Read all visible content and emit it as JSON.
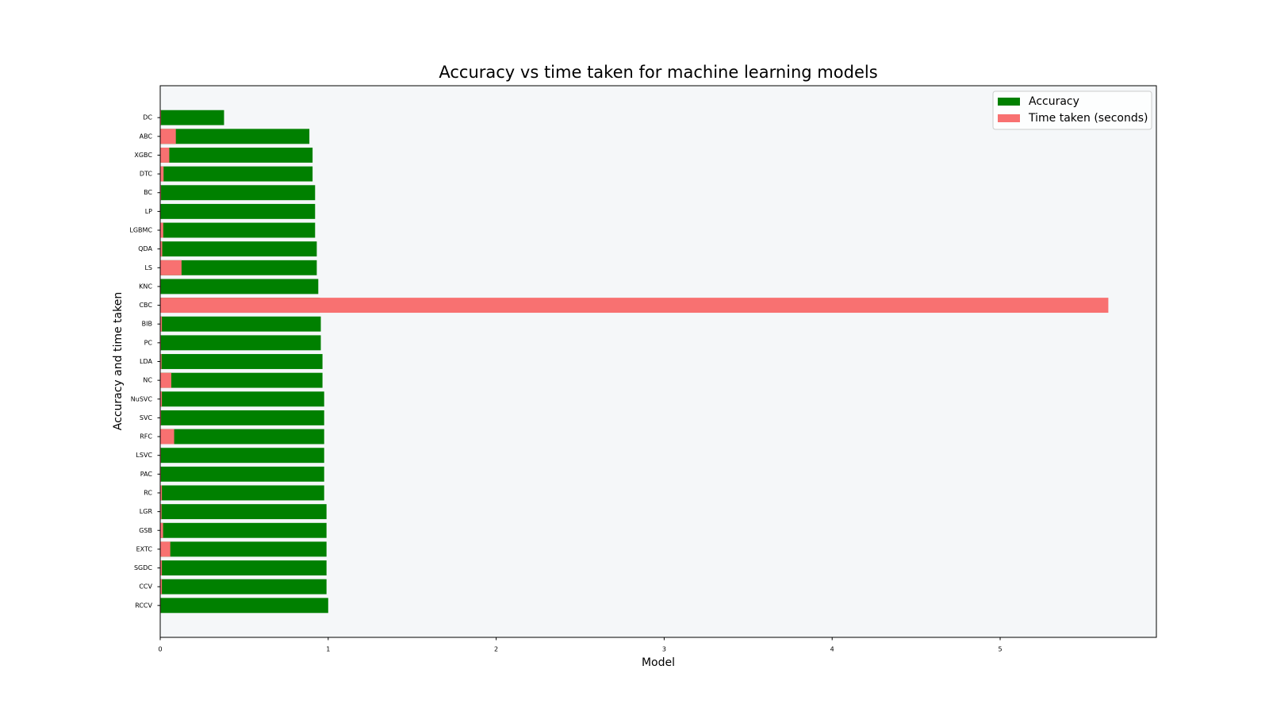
{
  "chart_data": {
    "type": "barh_overlay",
    "title": "Accuracy vs time taken for machine learning models",
    "xlabel": "Model",
    "ylabel": "Accuracy and time taken",
    "categories": [
      "RCCV",
      "CCV",
      "SGDC",
      "EXTC",
      "GSB",
      "LGR",
      "RC",
      "PAC",
      "LSVC",
      "RFC",
      "SVC",
      "NuSVC",
      "NC",
      "LDA",
      "PC",
      "BIB",
      "CBC",
      "KNC",
      "LS",
      "QDA",
      "LGBMC",
      "LP",
      "BC",
      "DTC",
      "XGBC",
      "ABC",
      "DC"
    ],
    "series": [
      {
        "name": "Accuracy",
        "color": "#008000",
        "values": [
          1.0,
          0.99,
          0.99,
          0.99,
          0.99,
          0.99,
          0.976,
          0.976,
          0.976,
          0.976,
          0.976,
          0.976,
          0.966,
          0.966,
          0.956,
          0.956,
          0.95,
          0.941,
          0.932,
          0.932,
          0.922,
          0.922,
          0.922,
          0.907,
          0.907,
          0.888,
          0.38
        ]
      },
      {
        "name": "Time taken (seconds)",
        "color": "#f87171",
        "values": [
          0.003,
          0.01,
          0.01,
          0.06,
          0.017,
          0.008,
          0.01,
          0.004,
          0.004,
          0.083,
          0.005,
          0.01,
          0.066,
          0.008,
          0.004,
          0.01,
          5.644,
          0.003,
          0.127,
          0.012,
          0.018,
          0.003,
          0.005,
          0.02,
          0.054,
          0.093,
          0.005
        ]
      }
    ],
    "xlim": [
      0,
      5.93
    ],
    "xticks": [
      0,
      1,
      2,
      3,
      4,
      5
    ],
    "grid": false,
    "legend": "upper right",
    "background": "#f5f7f9"
  }
}
